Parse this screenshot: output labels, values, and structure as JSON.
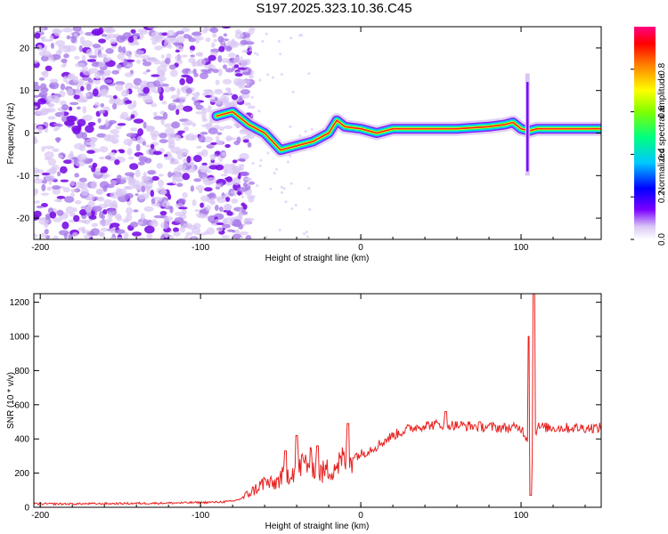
{
  "title": "S197.2025.323.10.36.C45",
  "chart_data": [
    {
      "type": "heatmap",
      "title": "S197.2025.323.10.36.C45",
      "xlabel": "Height of straight line (km)",
      "ylabel": "Frequency (Hz)",
      "xlim": [
        -204,
        150
      ],
      "ylim": [
        -25,
        25
      ],
      "xticks": [
        -200,
        -100,
        0,
        100
      ],
      "yticks": [
        -20,
        -10,
        0,
        10,
        20
      ],
      "colorbar": {
        "label": "Normalized spectral amplitude",
        "range": [
          0,
          1
        ],
        "ticks": [
          "0.0",
          "0.2",
          "0.4",
          "0.6",
          "0.8"
        ],
        "colors": [
          "#ffffff",
          "#c9b3f0",
          "#7a00ff",
          "#0000ff",
          "#00c8ff",
          "#00ff80",
          "#ffff00",
          "#ff8000",
          "#ff0000",
          "#ff0080"
        ]
      },
      "ridge": {
        "x": [
          -90,
          -80,
          -70,
          -60,
          -50,
          -40,
          -30,
          -20,
          -15,
          -10,
          0,
          10,
          20,
          40,
          60,
          80,
          90,
          95,
          100,
          105,
          110,
          120,
          140,
          150
        ],
        "y": [
          4,
          5,
          2,
          0,
          -4,
          -3,
          -2,
          0,
          3,
          1.5,
          1,
          0,
          1,
          1,
          1,
          1.5,
          2,
          2.5,
          1,
          0.5,
          1,
          1,
          1,
          1
        ]
      },
      "noise_extent_x": [
        -204,
        -78
      ]
    },
    {
      "type": "line",
      "xlabel": "Height of straight line (km)",
      "ylabel": "SNR (10 * v/v)",
      "xlim": [
        -204,
        150
      ],
      "ylim": [
        0,
        1250
      ],
      "xticks": [
        -200,
        -100,
        0,
        100
      ],
      "yticks": [
        0,
        200,
        400,
        600,
        800,
        1000,
        1200
      ],
      "color": "#e8201e",
      "series": [
        {
          "name": "SNR",
          "x": [
            -204,
            -180,
            -150,
            -120,
            -100,
            -90,
            -80,
            -75,
            -70,
            -65,
            -60,
            -55,
            -50,
            -45,
            -40,
            -35,
            -30,
            -25,
            -20,
            -15,
            -10,
            -5,
            0,
            10,
            20,
            30,
            40,
            50,
            60,
            70,
            80,
            90,
            100,
            104,
            106,
            108,
            110,
            120,
            130,
            140,
            150
          ],
          "y": [
            20,
            20,
            22,
            25,
            28,
            30,
            35,
            50,
            80,
            110,
            150,
            130,
            170,
            200,
            230,
            260,
            260,
            200,
            220,
            250,
            280,
            300,
            310,
            360,
            420,
            460,
            480,
            485,
            480,
            475,
            470,
            465,
            465,
            400,
            120,
            400,
            470,
            465,
            465,
            465,
            465
          ],
          "spikes": [
            {
              "x": -47,
              "y": 330
            },
            {
              "x": -40,
              "y": 420
            },
            {
              "x": -27,
              "y": 360
            },
            {
              "x": -8,
              "y": 490
            },
            {
              "x": 53,
              "y": 560
            },
            {
              "x": 105,
              "y": 1000
            },
            {
              "x": 108,
              "y": 1250
            },
            {
              "x": 106,
              "y": 70
            }
          ]
        }
      ]
    }
  ]
}
